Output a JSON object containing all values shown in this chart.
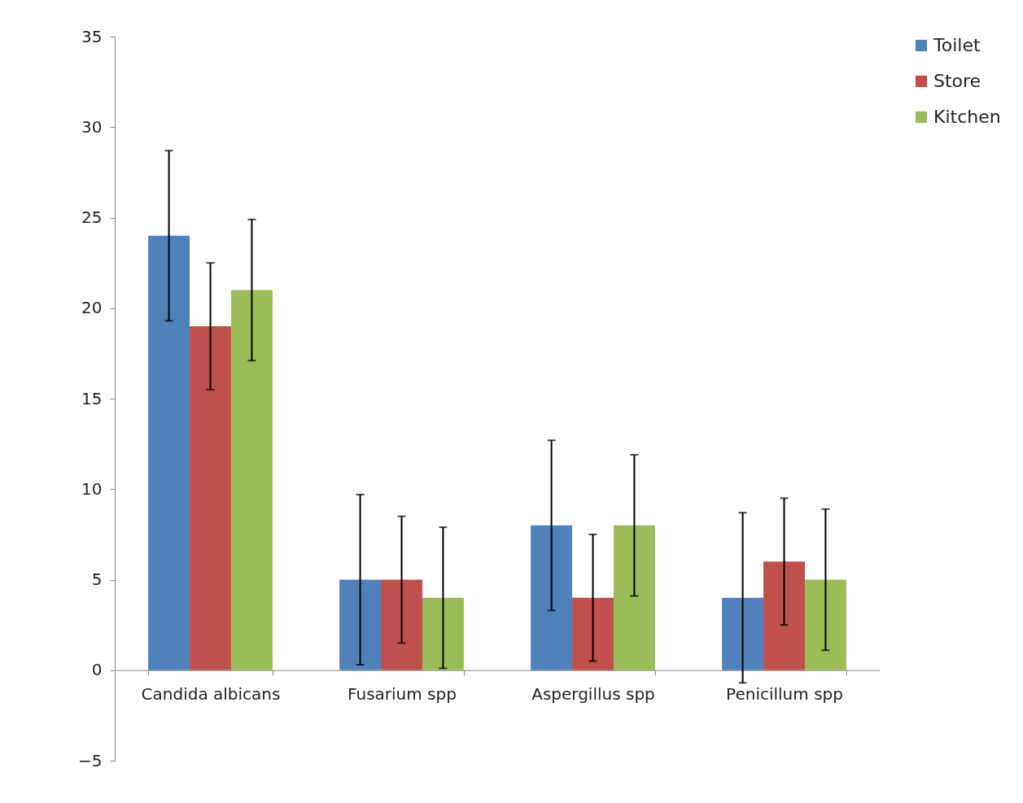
{
  "chart_data": {
    "type": "bar",
    "categories": [
      "Candida albicans",
      "Fusarium spp",
      "Aspergillus spp",
      "Penicillum spp"
    ],
    "series": [
      {
        "name": "Toilet",
        "color": "#4f81bd",
        "values": [
          24,
          5,
          8,
          4
        ],
        "errors": [
          4.7,
          4.7,
          4.7,
          4.7
        ]
      },
      {
        "name": "Store",
        "color": "#c0504d",
        "values": [
          19,
          5,
          4,
          6
        ],
        "errors": [
          3.5,
          3.5,
          3.5,
          3.5
        ]
      },
      {
        "name": "Kitchen",
        "color": "#9bbb59",
        "values": [
          21,
          4,
          8,
          5
        ],
        "errors": [
          3.9,
          3.9,
          3.9,
          3.9
        ]
      }
    ],
    "ylim": [
      -5,
      35
    ],
    "yticks": [
      -5,
      0,
      5,
      10,
      15,
      20,
      25,
      30,
      35
    ],
    "grid": false,
    "legend": "right"
  }
}
